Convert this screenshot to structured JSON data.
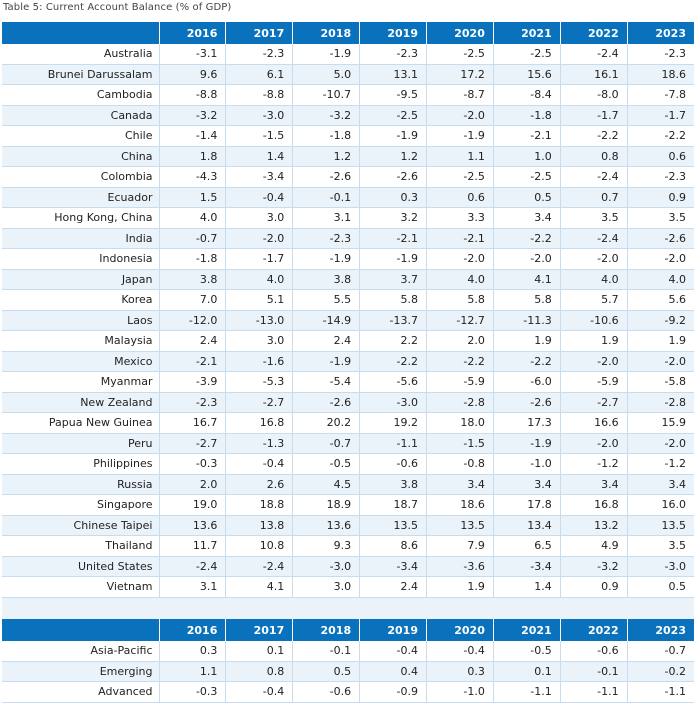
{
  "caption": "Table 5: Current Account Balance (% of GDP)",
  "years": [
    "2016",
    "2017",
    "2018",
    "2019",
    "2020",
    "2021",
    "2022",
    "2023"
  ],
  "rows": [
    {
      "name": "Australia",
      "values": [
        "-3.1",
        "-2.3",
        "-1.9",
        "-2.3",
        "-2.5",
        "-2.5",
        "-2.4",
        "-2.3"
      ]
    },
    {
      "name": "Brunei Darussalam",
      "values": [
        "9.6",
        "6.1",
        "5.0",
        "13.1",
        "17.2",
        "15.6",
        "16.1",
        "18.6"
      ]
    },
    {
      "name": "Cambodia",
      "values": [
        "-8.8",
        "-8.8",
        "-10.7",
        "-9.5",
        "-8.7",
        "-8.4",
        "-8.0",
        "-7.8"
      ]
    },
    {
      "name": "Canada",
      "values": [
        "-3.2",
        "-3.0",
        "-3.2",
        "-2.5",
        "-2.0",
        "-1.8",
        "-1.7",
        "-1.7"
      ]
    },
    {
      "name": "Chile",
      "values": [
        "-1.4",
        "-1.5",
        "-1.8",
        "-1.9",
        "-1.9",
        "-2.1",
        "-2.2",
        "-2.2"
      ]
    },
    {
      "name": "China",
      "values": [
        "1.8",
        "1.4",
        "1.2",
        "1.2",
        "1.1",
        "1.0",
        "0.8",
        "0.6"
      ]
    },
    {
      "name": "Colombia",
      "values": [
        "-4.3",
        "-3.4",
        "-2.6",
        "-2.6",
        "-2.5",
        "-2.5",
        "-2.4",
        "-2.3"
      ]
    },
    {
      "name": "Ecuador",
      "values": [
        "1.5",
        "-0.4",
        "-0.1",
        "0.3",
        "0.6",
        "0.5",
        "0.7",
        "0.9"
      ]
    },
    {
      "name": "Hong Kong, China",
      "values": [
        "4.0",
        "3.0",
        "3.1",
        "3.2",
        "3.3",
        "3.4",
        "3.5",
        "3.5"
      ]
    },
    {
      "name": "India",
      "values": [
        "-0.7",
        "-2.0",
        "-2.3",
        "-2.1",
        "-2.1",
        "-2.2",
        "-2.4",
        "-2.6"
      ]
    },
    {
      "name": "Indonesia",
      "values": [
        "-1.8",
        "-1.7",
        "-1.9",
        "-1.9",
        "-2.0",
        "-2.0",
        "-2.0",
        "-2.0"
      ]
    },
    {
      "name": "Japan",
      "values": [
        "3.8",
        "4.0",
        "3.8",
        "3.7",
        "4.0",
        "4.1",
        "4.0",
        "4.0"
      ]
    },
    {
      "name": "Korea",
      "values": [
        "7.0",
        "5.1",
        "5.5",
        "5.8",
        "5.8",
        "5.8",
        "5.7",
        "5.6"
      ]
    },
    {
      "name": "Laos",
      "values": [
        "-12.0",
        "-13.0",
        "-14.9",
        "-13.7",
        "-12.7",
        "-11.3",
        "-10.6",
        "-9.2"
      ]
    },
    {
      "name": "Malaysia",
      "values": [
        "2.4",
        "3.0",
        "2.4",
        "2.2",
        "2.0",
        "1.9",
        "1.9",
        "1.9"
      ]
    },
    {
      "name": "Mexico",
      "values": [
        "-2.1",
        "-1.6",
        "-1.9",
        "-2.2",
        "-2.2",
        "-2.2",
        "-2.0",
        "-2.0"
      ]
    },
    {
      "name": "Myanmar",
      "values": [
        "-3.9",
        "-5.3",
        "-5.4",
        "-5.6",
        "-5.9",
        "-6.0",
        "-5.9",
        "-5.8"
      ]
    },
    {
      "name": "New Zealand",
      "values": [
        "-2.3",
        "-2.7",
        "-2.6",
        "-3.0",
        "-2.8",
        "-2.6",
        "-2.7",
        "-2.8"
      ]
    },
    {
      "name": "Papua New Guinea",
      "values": [
        "16.7",
        "16.8",
        "20.2",
        "19.2",
        "18.0",
        "17.3",
        "16.6",
        "15.9"
      ]
    },
    {
      "name": "Peru",
      "values": [
        "-2.7",
        "-1.3",
        "-0.7",
        "-1.1",
        "-1.5",
        "-1.9",
        "-2.0",
        "-2.0"
      ]
    },
    {
      "name": "Philippines",
      "values": [
        "-0.3",
        "-0.4",
        "-0.5",
        "-0.6",
        "-0.8",
        "-1.0",
        "-1.2",
        "-1.2"
      ]
    },
    {
      "name": "Russia",
      "values": [
        "2.0",
        "2.6",
        "4.5",
        "3.8",
        "3.4",
        "3.4",
        "3.4",
        "3.4"
      ]
    },
    {
      "name": "Singapore",
      "values": [
        "19.0",
        "18.8",
        "18.9",
        "18.7",
        "18.6",
        "17.8",
        "16.8",
        "16.0"
      ]
    },
    {
      "name": "Chinese Taipei",
      "values": [
        "13.6",
        "13.8",
        "13.6",
        "13.5",
        "13.5",
        "13.4",
        "13.2",
        "13.5"
      ]
    },
    {
      "name": "Thailand",
      "values": [
        "11.7",
        "10.8",
        "9.3",
        "8.6",
        "7.9",
        "6.5",
        "4.9",
        "3.5"
      ]
    },
    {
      "name": "United States",
      "values": [
        "-2.4",
        "-2.4",
        "-3.0",
        "-3.4",
        "-3.6",
        "-3.4",
        "-3.2",
        "-3.0"
      ]
    },
    {
      "name": "Vietnam",
      "values": [
        "3.1",
        "4.1",
        "3.0",
        "2.4",
        "1.9",
        "1.4",
        "0.9",
        "0.5"
      ]
    }
  ],
  "aggregates": [
    {
      "name": "Asia-Pacific",
      "values": [
        "0.3",
        "0.1",
        "-0.1",
        "-0.4",
        "-0.4",
        "-0.5",
        "-0.6",
        "-0.7"
      ]
    },
    {
      "name": "Emerging",
      "values": [
        "1.1",
        "0.8",
        "0.5",
        "0.4",
        "0.3",
        "0.1",
        "-0.1",
        "-0.2"
      ]
    },
    {
      "name": "Advanced",
      "values": [
        "-0.3",
        "-0.4",
        "-0.6",
        "-0.9",
        "-1.0",
        "-1.1",
        "-1.1",
        "-1.1"
      ]
    }
  ],
  "colors": {
    "header_bg": "#0a72bd",
    "stripe": "#eaf2fa",
    "grid": "#c9dced"
  }
}
